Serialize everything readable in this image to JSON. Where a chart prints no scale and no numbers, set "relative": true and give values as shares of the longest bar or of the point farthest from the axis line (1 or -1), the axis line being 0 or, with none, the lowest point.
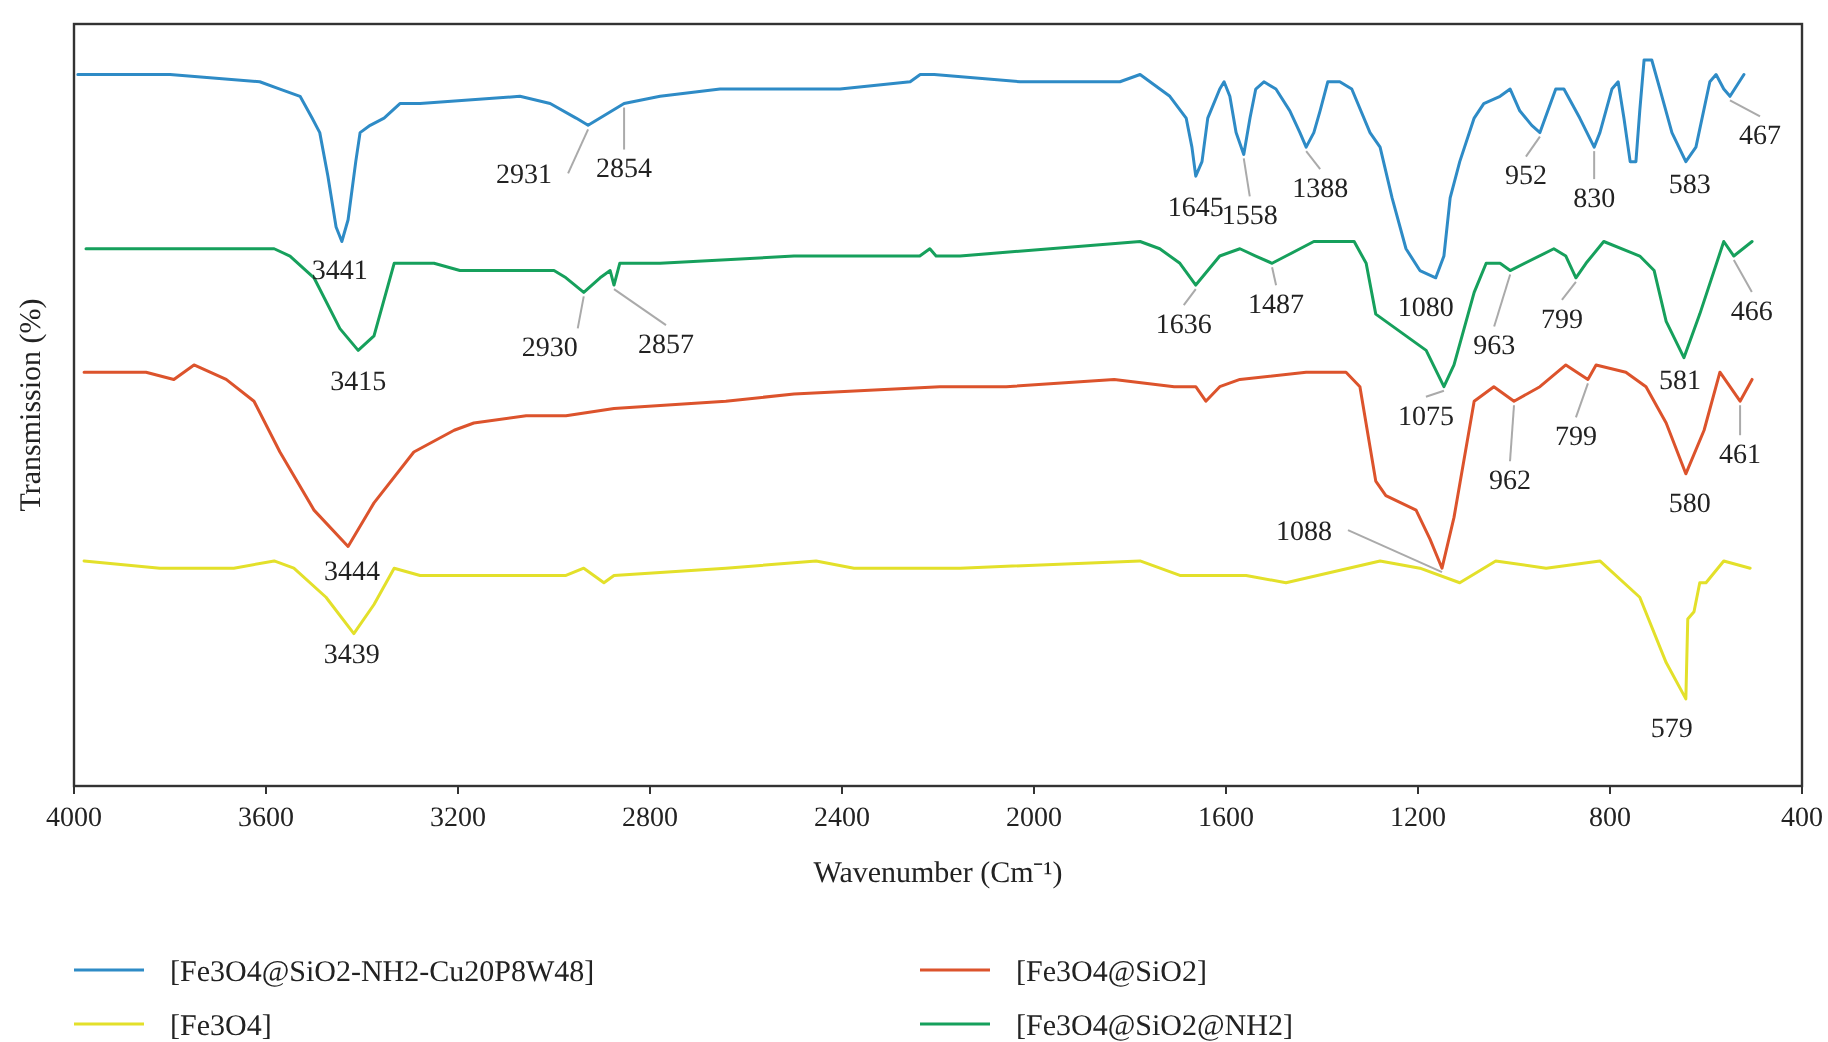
{
  "chart_data": {
    "type": "line",
    "relative": true,
    "xlabel": "Wavenumber (Cm⁻¹)",
    "ylabel": "Transmission (%)",
    "xlim": [
      4000,
      400
    ],
    "xticks": [
      4000,
      3600,
      3200,
      2800,
      2400,
      2000,
      1600,
      1200,
      800,
      400
    ],
    "legend": "bottom",
    "grid": false,
    "line_style": "solid",
    "series": [
      {
        "name": "[Fe3O4@SiO2-NH2-Cu20P8W48]",
        "color": "#2e8bc6",
        "x": [
          3992,
          3800,
          3613,
          3571,
          3529,
          3504,
          3488,
          3471,
          3454,
          3442,
          3429,
          3413,
          3404,
          3383,
          3354,
          3321,
          3279,
          3071,
          3008,
          2954,
          2929,
          2904,
          2854,
          2779,
          2654,
          2404,
          2258,
          2237,
          2208,
          2029,
          1821,
          1779,
          1717,
          1683,
          1671,
          1663,
          1650,
          1638,
          1613,
          1604,
          1592,
          1579,
          1563,
          1550,
          1538,
          1521,
          1496,
          1467,
          1446,
          1433,
          1417,
          1404,
          1388,
          1363,
          1338,
          1300,
          1279,
          1254,
          1225,
          1196,
          1163,
          1146,
          1133,
          1113,
          1083,
          1063,
          1029,
          1008,
          988,
          963,
          946,
          913,
          896,
          863,
          833,
          821,
          796,
          783,
          771,
          758,
          746,
          738,
          729,
          713,
          696,
          671,
          642,
          621,
          592,
          579,
          563,
          550,
          521
        ],
        "values": [
          0.98,
          0.98,
          0.97,
          0.96,
          0.95,
          0.92,
          0.9,
          0.84,
          0.77,
          0.75,
          0.78,
          0.86,
          0.9,
          0.91,
          0.92,
          0.94,
          0.94,
          0.95,
          0.94,
          0.92,
          0.91,
          0.92,
          0.94,
          0.95,
          0.96,
          0.96,
          0.97,
          0.98,
          0.98,
          0.97,
          0.97,
          0.98,
          0.95,
          0.92,
          0.88,
          0.84,
          0.86,
          0.92,
          0.96,
          0.97,
          0.95,
          0.9,
          0.87,
          0.92,
          0.96,
          0.97,
          0.96,
          0.93,
          0.9,
          0.88,
          0.9,
          0.93,
          0.97,
          0.97,
          0.96,
          0.9,
          0.88,
          0.81,
          0.74,
          0.71,
          0.7,
          0.73,
          0.81,
          0.86,
          0.92,
          0.94,
          0.95,
          0.96,
          0.93,
          0.91,
          0.9,
          0.96,
          0.96,
          0.92,
          0.88,
          0.9,
          0.96,
          0.97,
          0.92,
          0.86,
          0.86,
          0.93,
          1.0,
          1.0,
          0.96,
          0.9,
          0.86,
          0.88,
          0.97,
          0.98,
          0.96,
          0.95,
          0.98
        ]
      },
      {
        "name": "[Fe3O4@SiO2]",
        "color": "#dc532c",
        "x": [
          3979,
          3850,
          3792,
          3750,
          3683,
          3625,
          3571,
          3500,
          3429,
          3375,
          3292,
          3208,
          3167,
          3058,
          2975,
          2875,
          2642,
          2500,
          2196,
          2058,
          1833,
          1708,
          1663,
          1642,
          1613,
          1571,
          1433,
          1350,
          1321,
          1288,
          1267,
          1204,
          1175,
          1150,
          1125,
          1083,
          1042,
          1000,
          946,
          892,
          846,
          829,
          767,
          725,
          683,
          642,
          604,
          571,
          529,
          504
        ],
        "values": [
          0.57,
          0.57,
          0.56,
          0.58,
          0.56,
          0.53,
          0.46,
          0.38,
          0.33,
          0.39,
          0.46,
          0.49,
          0.5,
          0.51,
          0.51,
          0.52,
          0.53,
          0.54,
          0.55,
          0.55,
          0.56,
          0.55,
          0.55,
          0.53,
          0.55,
          0.56,
          0.57,
          0.57,
          0.55,
          0.42,
          0.4,
          0.38,
          0.34,
          0.3,
          0.37,
          0.53,
          0.55,
          0.53,
          0.55,
          0.58,
          0.56,
          0.58,
          0.57,
          0.55,
          0.5,
          0.43,
          0.49,
          0.57,
          0.53,
          0.56
        ]
      },
      {
        "name": "[Fe3O4]",
        "color": "#e3e02a",
        "x": [
          3979,
          3821,
          3667,
          3583,
          3542,
          3475,
          3417,
          3375,
          3333,
          3279,
          2975,
          2938,
          2896,
          2875,
          2642,
          2454,
          2375,
          2333,
          2154,
          1779,
          1696,
          1558,
          1475,
          1279,
          1196,
          1113,
          1038,
          933,
          821,
          738,
          683,
          642,
          638,
          625,
          613,
          600,
          563,
          508
        ],
        "values": [
          0.31,
          0.3,
          0.3,
          0.31,
          0.3,
          0.26,
          0.21,
          0.25,
          0.3,
          0.29,
          0.29,
          0.3,
          0.28,
          0.29,
          0.3,
          0.31,
          0.3,
          0.3,
          0.3,
          0.31,
          0.29,
          0.29,
          0.28,
          0.31,
          0.3,
          0.28,
          0.31,
          0.3,
          0.31,
          0.26,
          0.17,
          0.12,
          0.23,
          0.24,
          0.28,
          0.28,
          0.31,
          0.3
        ]
      },
      {
        "name": "[Fe3O4@SiO2@NH2]",
        "color": "#16a05c",
        "x": [
          3975,
          3750,
          3583,
          3550,
          3500,
          3446,
          3408,
          3375,
          3333,
          3308,
          3250,
          3196,
          3000,
          2975,
          2938,
          2904,
          2883,
          2875,
          2863,
          2779,
          2500,
          2238,
          2217,
          2204,
          2154,
          1779,
          1738,
          1696,
          1663,
          1613,
          1571,
          1538,
          1504,
          1475,
          1417,
          1333,
          1308,
          1288,
          1225,
          1183,
          1146,
          1125,
          1083,
          1058,
          1029,
          1008,
          917,
          892,
          871,
          850,
          813,
          738,
          708,
          683,
          646,
          613,
          563,
          542,
          504
        ],
        "values": [
          0.74,
          0.74,
          0.74,
          0.73,
          0.7,
          0.63,
          0.6,
          0.62,
          0.72,
          0.72,
          0.72,
          0.71,
          0.71,
          0.7,
          0.68,
          0.7,
          0.71,
          0.69,
          0.72,
          0.72,
          0.73,
          0.73,
          0.74,
          0.73,
          0.73,
          0.75,
          0.74,
          0.72,
          0.69,
          0.73,
          0.74,
          0.73,
          0.72,
          0.73,
          0.75,
          0.75,
          0.72,
          0.65,
          0.62,
          0.6,
          0.55,
          0.58,
          0.68,
          0.72,
          0.72,
          0.71,
          0.74,
          0.73,
          0.7,
          0.72,
          0.75,
          0.73,
          0.71,
          0.64,
          0.59,
          0.65,
          0.75,
          0.73,
          0.75
        ]
      }
    ],
    "annotations": [
      {
        "text": "3441",
        "x": 3442,
        "y": 0.75
      },
      {
        "text": "2931",
        "x": 2929,
        "y": 0.91
      },
      {
        "text": "2854",
        "x": 2854,
        "y": 0.94
      },
      {
        "text": "1645",
        "x": 1663,
        "y": 0.84
      },
      {
        "text": "1558",
        "x": 1563,
        "y": 0.87
      },
      {
        "text": "1388",
        "x": 1433,
        "y": 0.88
      },
      {
        "text": "1080",
        "x": 1163,
        "y": 0.7
      },
      {
        "text": "952",
        "x": 946,
        "y": 0.9
      },
      {
        "text": "830",
        "x": 833,
        "y": 0.88
      },
      {
        "text": "583",
        "x": 642,
        "y": 0.86
      },
      {
        "text": "467",
        "x": 550,
        "y": 0.95
      },
      {
        "text": "3415",
        "x": 3408,
        "y": 0.6
      },
      {
        "text": "2930",
        "x": 2938,
        "y": 0.68
      },
      {
        "text": "2857",
        "x": 2875,
        "y": 0.69
      },
      {
        "text": "1636",
        "x": 1663,
        "y": 0.69
      },
      {
        "text": "1487",
        "x": 1504,
        "y": 0.72
      },
      {
        "text": "1075",
        "x": 1146,
        "y": 0.55
      },
      {
        "text": "963",
        "x": 1008,
        "y": 0.71
      },
      {
        "text": "799",
        "x": 871,
        "y": 0.7
      },
      {
        "text": "581",
        "x": 646,
        "y": 0.59
      },
      {
        "text": "466",
        "x": 542,
        "y": 0.73
      },
      {
        "text": "3444",
        "x": 3429,
        "y": 0.33
      },
      {
        "text": "1088",
        "x": 1150,
        "y": 0.3
      },
      {
        "text": "962",
        "x": 1000,
        "y": 0.53
      },
      {
        "text": "799",
        "x": 846,
        "y": 0.56
      },
      {
        "text": "580",
        "x": 642,
        "y": 0.43
      },
      {
        "text": "461",
        "x": 529,
        "y": 0.53
      },
      {
        "text": "3439",
        "x": 3417,
        "y": 0.21
      },
      {
        "text": "579",
        "x": 642,
        "y": 0.12
      }
    ]
  }
}
